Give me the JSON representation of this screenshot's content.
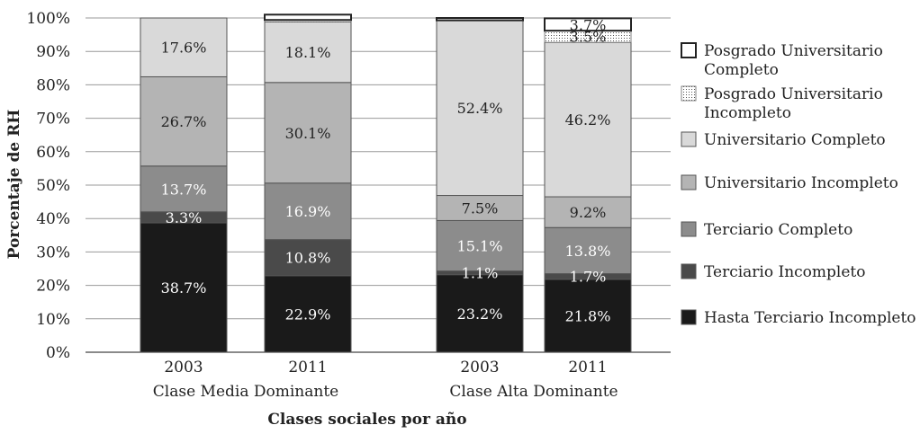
{
  "chart_data": {
    "type": "bar",
    "stacked": true,
    "ylabel": "Porcentaje de RH",
    "xlabel": "Clases sociales por año",
    "ylim": [
      0,
      100
    ],
    "yticks": [
      "0%",
      "10%",
      "20%",
      "30%",
      "40%",
      "50%",
      "60%",
      "70%",
      "80%",
      "90%",
      "100%"
    ],
    "groups": [
      "Clase Media Dominante",
      "Clase Alta Dominante"
    ],
    "categories": [
      "2003",
      "2011",
      "2003",
      "2011"
    ],
    "category_group": [
      0,
      0,
      1,
      1
    ],
    "grid": true,
    "legend_position": "right",
    "series": [
      {
        "name": "Hasta Terciario Incompleto",
        "values": [
          38.7,
          22.9,
          23.2,
          21.8
        ],
        "labels": [
          "38.7%",
          "22.9%",
          "23.2%",
          "21.8%"
        ],
        "color": "#1a1a1a",
        "text_color": "#ffffff"
      },
      {
        "name": "Terciario Incompleto",
        "values": [
          3.3,
          10.8,
          1.1,
          1.7
        ],
        "labels": [
          "3.3%",
          "10.8%",
          "1.1%",
          "1.7%"
        ],
        "color": "#4a4a4a",
        "text_color": "#ffffff"
      },
      {
        "name": "Terciario Completo",
        "values": [
          13.7,
          16.9,
          15.1,
          13.8
        ],
        "labels": [
          "13.7%",
          "16.9%",
          "15.1%",
          "13.8%"
        ],
        "color": "#8c8c8c",
        "text_color": "#ffffff"
      },
      {
        "name": "Universitario Incompleto",
        "values": [
          26.7,
          30.1,
          7.5,
          9.2
        ],
        "labels": [
          "26.7%",
          "30.1%",
          "7.5%",
          "9.2%"
        ],
        "color": "#b4b4b4",
        "text_color": "#222222"
      },
      {
        "name": "Universitario Completo",
        "values": [
          17.6,
          18.1,
          52.4,
          46.2
        ],
        "labels": [
          "17.6%",
          "18.1%",
          "52.4%",
          "46.2%"
        ],
        "color": "#d9d9d9",
        "text_color": "#222222"
      },
      {
        "name": "Posgrado Universitario Incompleto",
        "values": [
          0,
          0.6,
          0,
          3.5
        ],
        "labels": [
          "",
          "",
          "",
          "3.5%"
        ],
        "color": "#ffffff",
        "text_color": "#222222",
        "pattern": "dotted"
      },
      {
        "name": "Posgrado Universitario Completo",
        "values": [
          0,
          1.6,
          0.7,
          3.7
        ],
        "labels": [
          "",
          "",
          "",
          "3.7%"
        ],
        "color": "#ffffff",
        "text_color": "#222222",
        "pattern": "outline"
      }
    ],
    "legend_order": [
      [
        "Posgrado Universitario",
        "Completo"
      ],
      [
        "Posgrado Universitario",
        "Incompleto"
      ],
      [
        "Universitario Completo"
      ],
      [
        "Universitario Incompleto"
      ],
      [
        "Terciario Completo"
      ],
      [
        "Terciario Incompleto"
      ],
      [
        "Hasta Terciario Incompleto"
      ]
    ]
  }
}
